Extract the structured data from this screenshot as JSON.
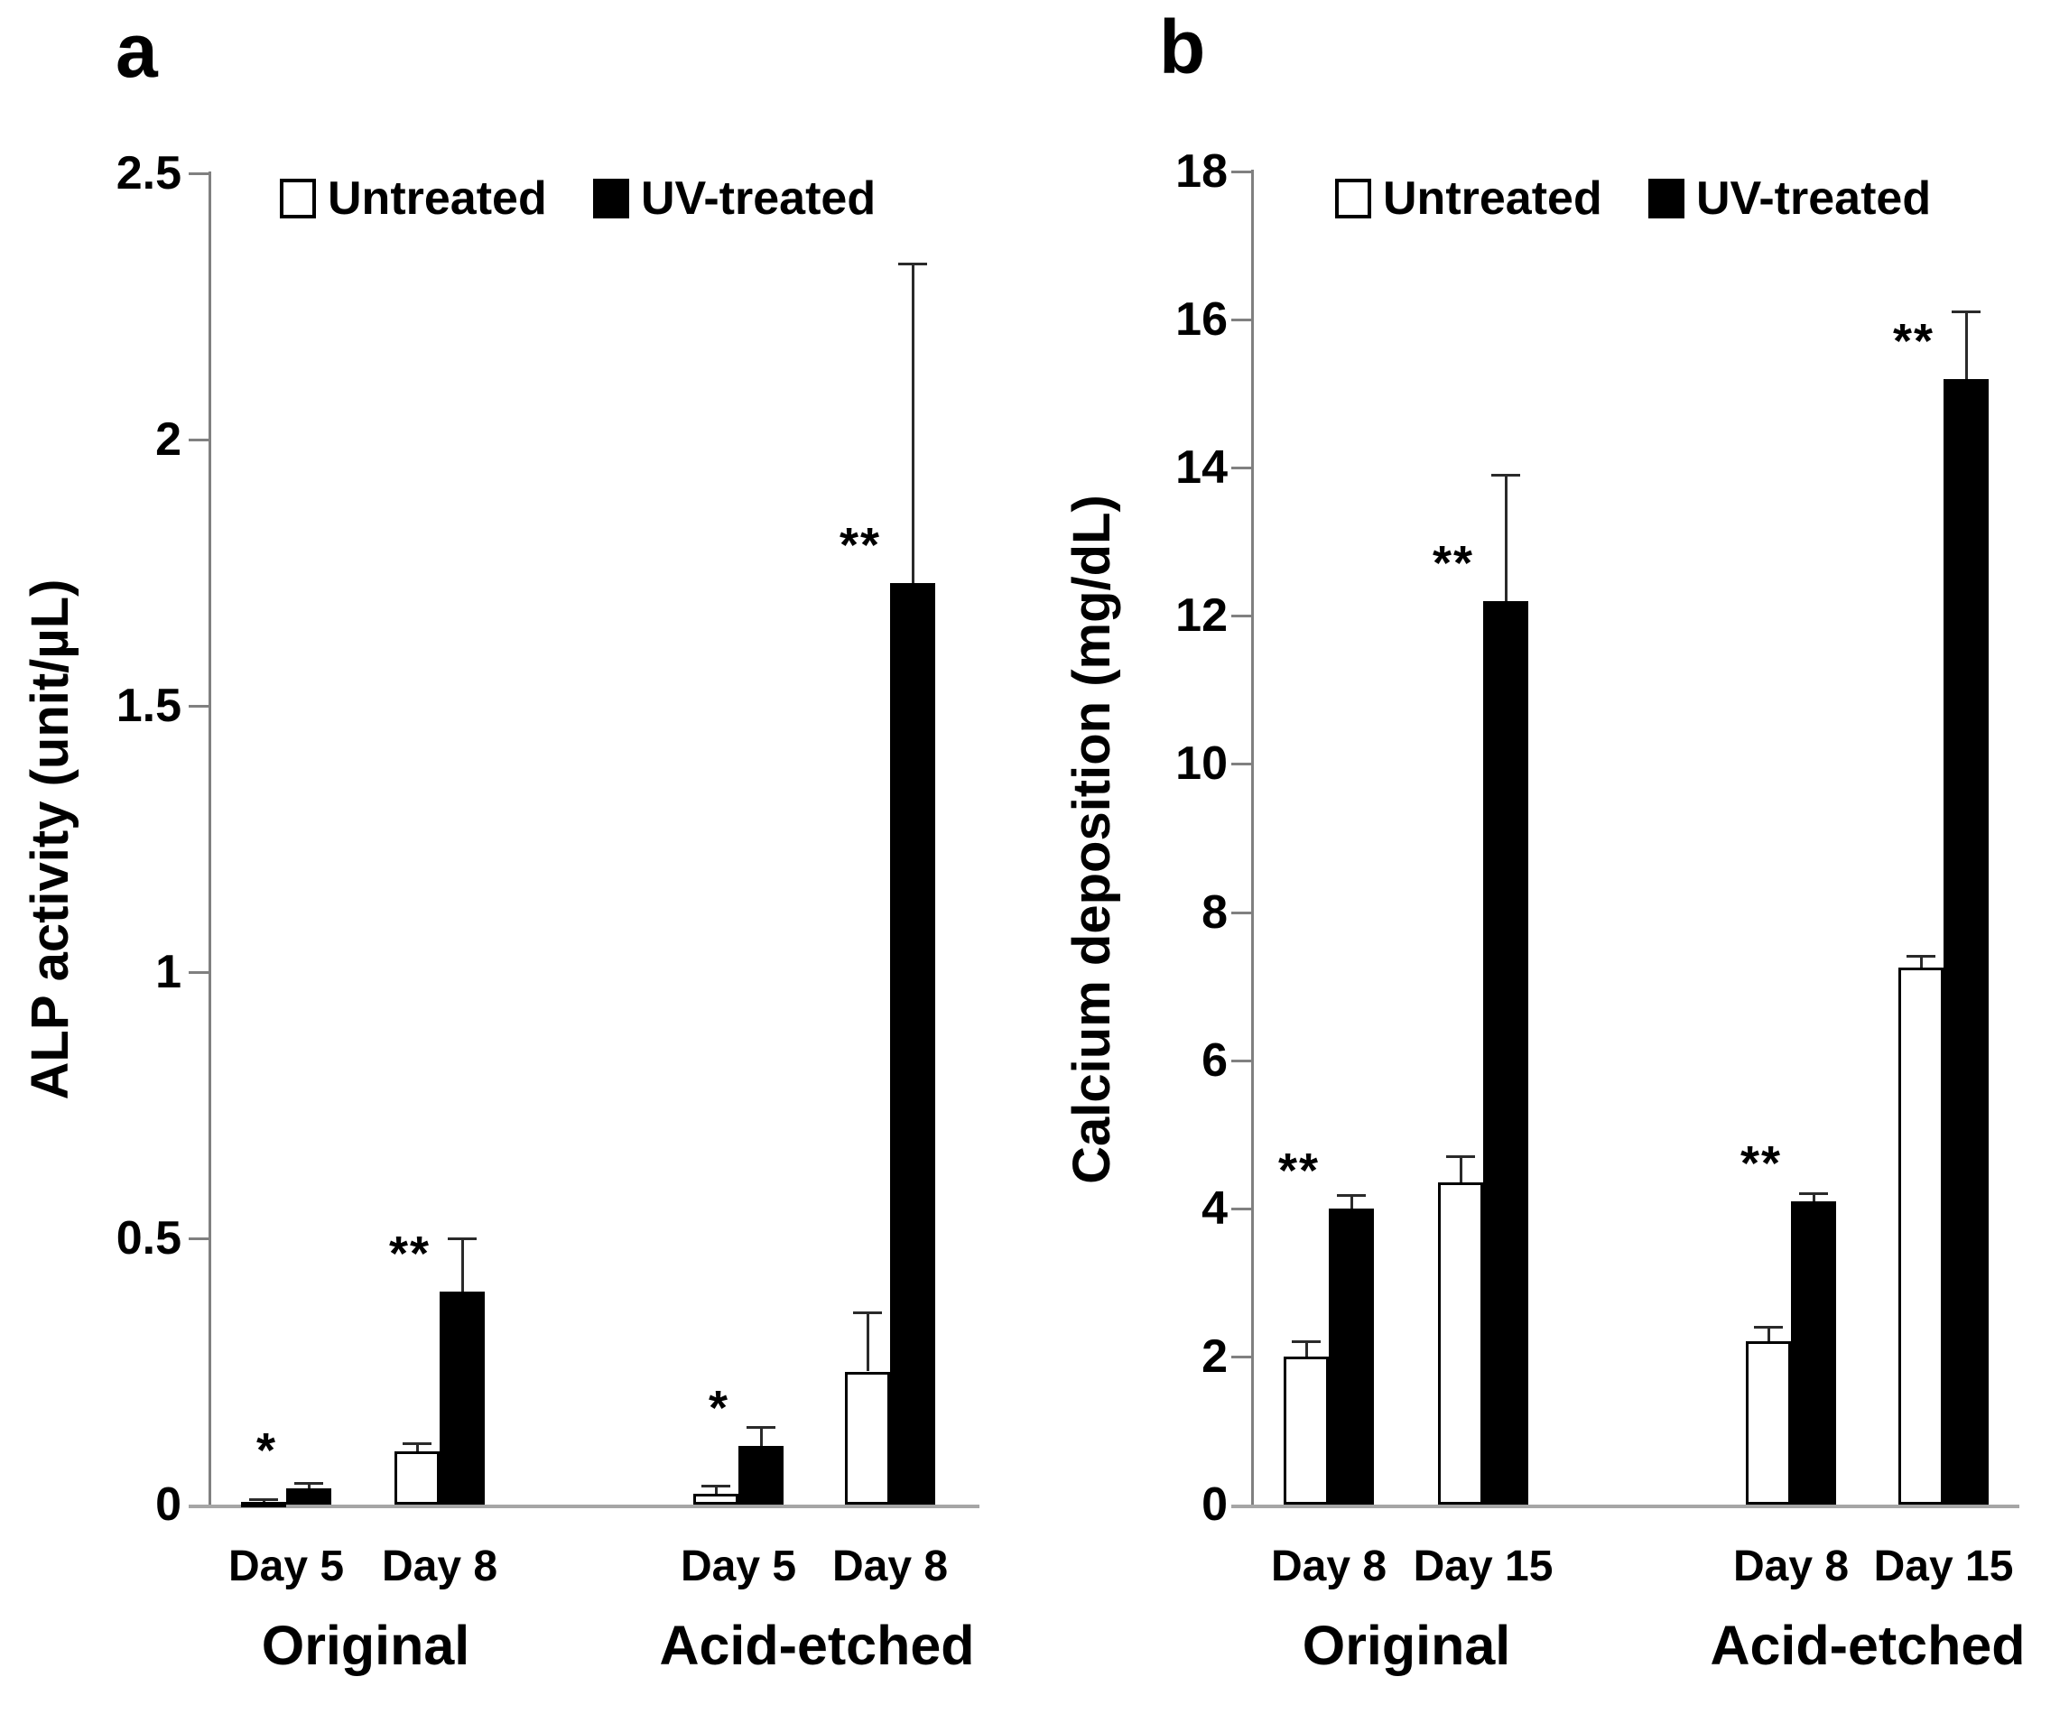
{
  "figure": {
    "background": "#ffffff",
    "panel_letters": [
      "a",
      "b"
    ]
  },
  "colors": {
    "bar_untreated": "#ffffff",
    "bar_uv_treated": "#000000",
    "axis_line": "#808080",
    "baseline": "#a6a6a6",
    "text": "#000000"
  },
  "chart_data": [
    {
      "type": "bar",
      "panel_label": "a",
      "ylabel": "ALP activity (unit/µL)",
      "xlabel": "",
      "ylim": [
        0,
        2.5
      ],
      "ytick_step": 0.5,
      "yticks": [
        "0",
        "0.5",
        "1",
        "1.5",
        "2",
        "2.5"
      ],
      "grid": false,
      "legend_position": "top",
      "legend": [
        {
          "label": "Untreated",
          "fill": "#ffffff"
        },
        {
          "label": "UV-treated",
          "fill": "#000000"
        }
      ],
      "groups": [
        {
          "label": "Original",
          "days": [
            {
              "label": "Day 5",
              "significance": "*",
              "series": [
                {
                  "name": "Untreated",
                  "value": 0.005,
                  "error": 0.005
                },
                {
                  "name": "UV-treated",
                  "value": 0.03,
                  "error": 0.01
                }
              ]
            },
            {
              "label": "Day 8",
              "significance": "**",
              "series": [
                {
                  "name": "Untreated",
                  "value": 0.1,
                  "error": 0.015
                },
                {
                  "name": "UV-treated",
                  "value": 0.4,
                  "error": 0.1
                }
              ]
            }
          ]
        },
        {
          "label": "Acid-etched",
          "days": [
            {
              "label": "Day 5",
              "significance": "*",
              "series": [
                {
                  "name": "Untreated",
                  "value": 0.02,
                  "error": 0.015
                },
                {
                  "name": "UV-treated",
                  "value": 0.11,
                  "error": 0.035
                }
              ]
            },
            {
              "label": "Day 8",
              "significance": "**",
              "series": [
                {
                  "name": "Untreated",
                  "value": 0.25,
                  "error": 0.11
                },
                {
                  "name": "UV-treated",
                  "value": 1.73,
                  "error": 0.6
                }
              ]
            }
          ]
        }
      ]
    },
    {
      "type": "bar",
      "panel_label": "b",
      "ylabel": "Calcium deposition (mg/dL)",
      "xlabel": "",
      "ylim": [
        0,
        18
      ],
      "ytick_step": 2,
      "yticks": [
        "0",
        "2",
        "4",
        "6",
        "8",
        "10",
        "12",
        "14",
        "16",
        "18"
      ],
      "grid": false,
      "legend_position": "top",
      "legend": [
        {
          "label": "Untreated",
          "fill": "#ffffff"
        },
        {
          "label": "UV-treated",
          "fill": "#000000"
        }
      ],
      "groups": [
        {
          "label": "Original",
          "days": [
            {
              "label": "Day 8",
              "significance": "**",
              "series": [
                {
                  "name": "Untreated",
                  "value": 2.0,
                  "error": 0.2
                },
                {
                  "name": "UV-treated",
                  "value": 4.0,
                  "error": 0.17
                }
              ]
            },
            {
              "label": "Day 15",
              "significance": "**",
              "series": [
                {
                  "name": "Untreated",
                  "value": 4.35,
                  "error": 0.35
                },
                {
                  "name": "UV-treated",
                  "value": 12.2,
                  "error": 1.7
                }
              ]
            }
          ]
        },
        {
          "label": "Acid-etched",
          "days": [
            {
              "label": "Day 8",
              "significance": "**",
              "series": [
                {
                  "name": "Untreated",
                  "value": 2.2,
                  "error": 0.2
                },
                {
                  "name": "UV-treated",
                  "value": 4.1,
                  "error": 0.1
                }
              ]
            },
            {
              "label": "Day 15",
              "significance": "**",
              "series": [
                {
                  "name": "Untreated",
                  "value": 7.25,
                  "error": 0.15
                },
                {
                  "name": "UV-treated",
                  "value": 15.2,
                  "error": 0.9
                }
              ]
            }
          ]
        }
      ]
    }
  ]
}
